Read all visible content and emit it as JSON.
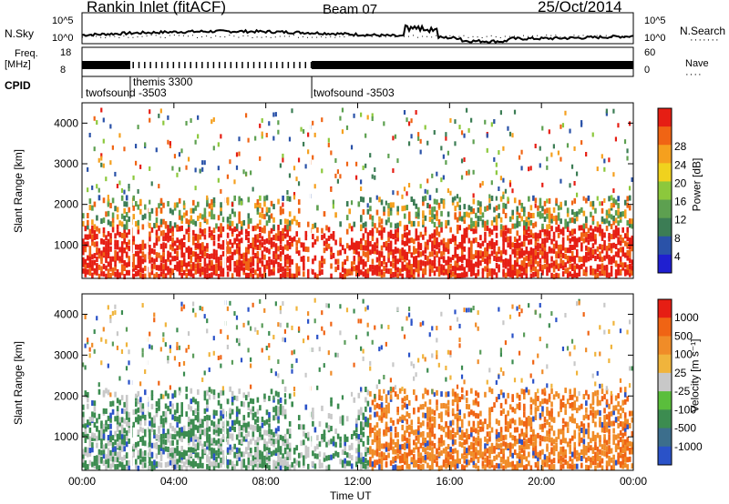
{
  "header": {
    "station": "Rankin Inlet (fitACF)",
    "beam": "Beam 07",
    "date": "25/Oct/2014"
  },
  "top_panel": {
    "nsky_label": "N.Sky",
    "left_ticks": [
      "10^5",
      "10^0"
    ],
    "right_ticks": [
      "10^5",
      "10^0"
    ],
    "nsearch_label": "N.Search",
    "freq_label_line1": "Freq.",
    "freq_label_line2": "[MHz]",
    "freq_ticks": [
      "18",
      "8"
    ],
    "nave_ticks": [
      "60",
      "0"
    ],
    "nave_label": "Nave",
    "cpid_label": "CPID",
    "cpid_segments": [
      {
        "text": "twofsound -3503"
      },
      {
        "text": "themis 3300"
      },
      {
        "text": "twofsound -3503"
      }
    ]
  },
  "chart_data": [
    {
      "type": "heatmap",
      "title": "Power",
      "ylabel": "Slant Range [km]",
      "xlabel": "",
      "x_range_hours": [
        0,
        24
      ],
      "ylim": [
        180,
        4500
      ],
      "yticks": [
        1000,
        2000,
        3000,
        4000
      ],
      "colorbar": {
        "label": "Power [dB]",
        "ticks": [
          4,
          8,
          12,
          16,
          20,
          24,
          28
        ],
        "colors": [
          "#1f1fd0",
          "#2a52a8",
          "#3c7d55",
          "#5da050",
          "#8cc83c",
          "#f0d21e",
          "#f5a01e",
          "#f06414",
          "#e61e14"
        ]
      }
    },
    {
      "type": "heatmap",
      "title": "Velocity",
      "ylabel": "Slant Range [km]",
      "xlabel": "Time UT",
      "x_range_hours": [
        0,
        24
      ],
      "xticks": [
        "00:00",
        "04:00",
        "08:00",
        "12:00",
        "16:00",
        "20:00",
        "00:00"
      ],
      "ylim": [
        180,
        4500
      ],
      "yticks": [
        1000,
        2000,
        3000,
        4000
      ],
      "colorbar": {
        "label": "Velocity [m s⁻¹]",
        "ticks": [
          1000,
          500,
          100,
          25,
          -25,
          -100,
          -500,
          -1000
        ],
        "colors": [
          "#2a52c8",
          "#3c6e8c",
          "#3c8c50",
          "#5abe3c",
          "#c8c8c8",
          "#f0b43c",
          "#f08c28",
          "#f06414",
          "#e61e14"
        ]
      }
    }
  ]
}
